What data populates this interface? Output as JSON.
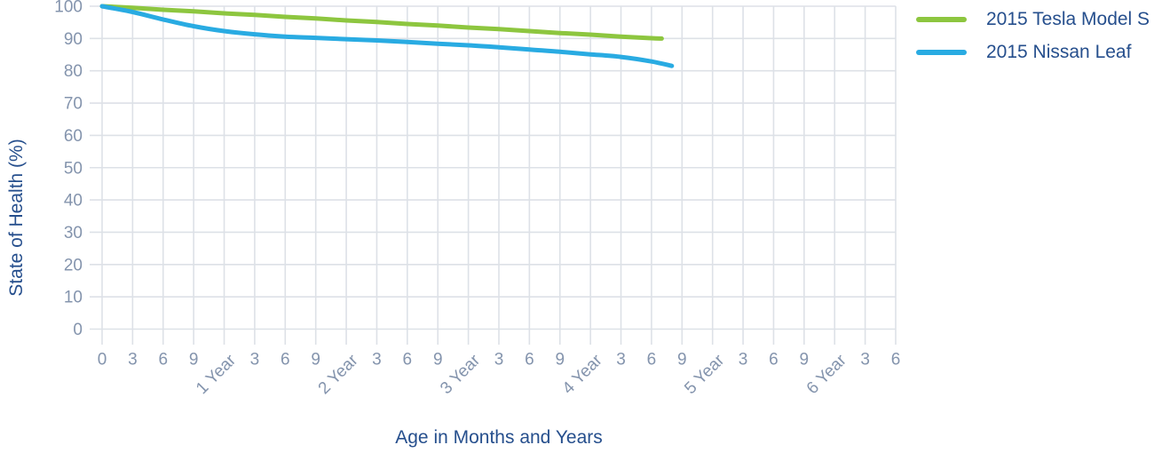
{
  "chart_data": {
    "type": "line",
    "title": "",
    "xlabel": "Age in Months and Years",
    "ylabel": "State of Health (%)",
    "x_unit": "months",
    "xlim": [
      0,
      78
    ],
    "ylim": [
      0,
      100
    ],
    "grid": true,
    "legend_position": "top-right",
    "y_ticks": [
      0,
      10,
      20,
      30,
      40,
      50,
      60,
      70,
      80,
      90,
      100
    ],
    "x_ticks": [
      {
        "m": 0,
        "label": "0",
        "rotated": false
      },
      {
        "m": 3,
        "label": "3",
        "rotated": false
      },
      {
        "m": 6,
        "label": "6",
        "rotated": false
      },
      {
        "m": 9,
        "label": "9",
        "rotated": false
      },
      {
        "m": 12,
        "label": "1 Year",
        "rotated": true
      },
      {
        "m": 15,
        "label": "3",
        "rotated": false
      },
      {
        "m": 18,
        "label": "6",
        "rotated": false
      },
      {
        "m": 21,
        "label": "9",
        "rotated": false
      },
      {
        "m": 24,
        "label": "2 Year",
        "rotated": true
      },
      {
        "m": 27,
        "label": "3",
        "rotated": false
      },
      {
        "m": 30,
        "label": "6",
        "rotated": false
      },
      {
        "m": 33,
        "label": "9",
        "rotated": false
      },
      {
        "m": 36,
        "label": "3 Year",
        "rotated": true
      },
      {
        "m": 39,
        "label": "3",
        "rotated": false
      },
      {
        "m": 42,
        "label": "6",
        "rotated": false
      },
      {
        "m": 45,
        "label": "9",
        "rotated": false
      },
      {
        "m": 48,
        "label": "4 Year",
        "rotated": true
      },
      {
        "m": 51,
        "label": "3",
        "rotated": false
      },
      {
        "m": 54,
        "label": "6",
        "rotated": false
      },
      {
        "m": 57,
        "label": "9",
        "rotated": false
      },
      {
        "m": 60,
        "label": "5 Year",
        "rotated": true
      },
      {
        "m": 63,
        "label": "3",
        "rotated": false
      },
      {
        "m": 66,
        "label": "6",
        "rotated": false
      },
      {
        "m": 69,
        "label": "9",
        "rotated": false
      },
      {
        "m": 72,
        "label": "6 Year",
        "rotated": true
      },
      {
        "m": 75,
        "label": "3",
        "rotated": false
      },
      {
        "m": 78,
        "label": "6",
        "rotated": false
      }
    ],
    "series": [
      {
        "name": "2015 Tesla Model S",
        "color": "#8dc63f",
        "points": [
          [
            0,
            100
          ],
          [
            3,
            99.5
          ],
          [
            6,
            98.9
          ],
          [
            9,
            98.4
          ],
          [
            12,
            97.8
          ],
          [
            15,
            97.3
          ],
          [
            18,
            96.7
          ],
          [
            21,
            96.2
          ],
          [
            24,
            95.6
          ],
          [
            27,
            95.1
          ],
          [
            30,
            94.5
          ],
          [
            33,
            94.0
          ],
          [
            36,
            93.4
          ],
          [
            39,
            92.9
          ],
          [
            42,
            92.3
          ],
          [
            45,
            91.7
          ],
          [
            48,
            91.2
          ],
          [
            51,
            90.6
          ],
          [
            54,
            90.1
          ],
          [
            55,
            90.0
          ]
        ]
      },
      {
        "name": "2015 Nissan Leaf",
        "color": "#29abe2",
        "points": [
          [
            0,
            100
          ],
          [
            3,
            98.2
          ],
          [
            6,
            95.9
          ],
          [
            9,
            93.8
          ],
          [
            12,
            92.3
          ],
          [
            15,
            91.3
          ],
          [
            18,
            90.6
          ],
          [
            21,
            90.2
          ],
          [
            24,
            89.8
          ],
          [
            27,
            89.4
          ],
          [
            30,
            88.9
          ],
          [
            33,
            88.4
          ],
          [
            36,
            87.9
          ],
          [
            39,
            87.3
          ],
          [
            42,
            86.6
          ],
          [
            45,
            85.9
          ],
          [
            48,
            85.1
          ],
          [
            51,
            84.3
          ],
          [
            54,
            82.9
          ],
          [
            56,
            81.5
          ]
        ]
      }
    ]
  },
  "colors": {
    "tesla_line": "#8dc63f",
    "leaf_line": "#29abe2",
    "gridline": "#dde1e7",
    "tick_text": "#8494ad",
    "title_text": "#264f8d",
    "background": "#ffffff"
  }
}
